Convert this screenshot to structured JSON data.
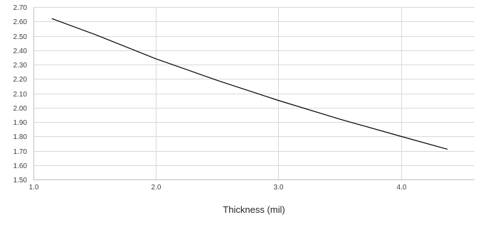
{
  "chart_data": {
    "type": "line",
    "title": "",
    "xlabel": "Thickness (mil)",
    "ylabel": "",
    "xlim": [
      1.0,
      4.6
    ],
    "ylim": [
      1.5,
      2.7
    ],
    "x_ticks": [
      1.0,
      2.0,
      3.0,
      4.0
    ],
    "x_tick_labels": [
      "1.0",
      "2.0",
      "3.0",
      "4.0"
    ],
    "y_ticks": [
      1.5,
      1.6,
      1.7,
      1.8,
      1.9,
      2.0,
      2.1,
      2.2,
      2.3,
      2.4,
      2.5,
      2.6,
      2.7
    ],
    "y_tick_labels": [
      "1.50",
      "1.60",
      "1.70",
      "1.80",
      "1.90",
      "2.00",
      "2.10",
      "2.20",
      "2.30",
      "2.40",
      "2.50",
      "2.60",
      "2.70"
    ],
    "grid": true,
    "legend": "none",
    "series": [
      {
        "color": "#000000",
        "points": [
          [
            1.15,
            2.62
          ],
          [
            1.5,
            2.51
          ],
          [
            2.0,
            2.34
          ],
          [
            2.5,
            2.19
          ],
          [
            3.0,
            2.05
          ],
          [
            3.5,
            1.92
          ],
          [
            4.0,
            1.8
          ],
          [
            4.38,
            1.71
          ]
        ]
      }
    ]
  }
}
